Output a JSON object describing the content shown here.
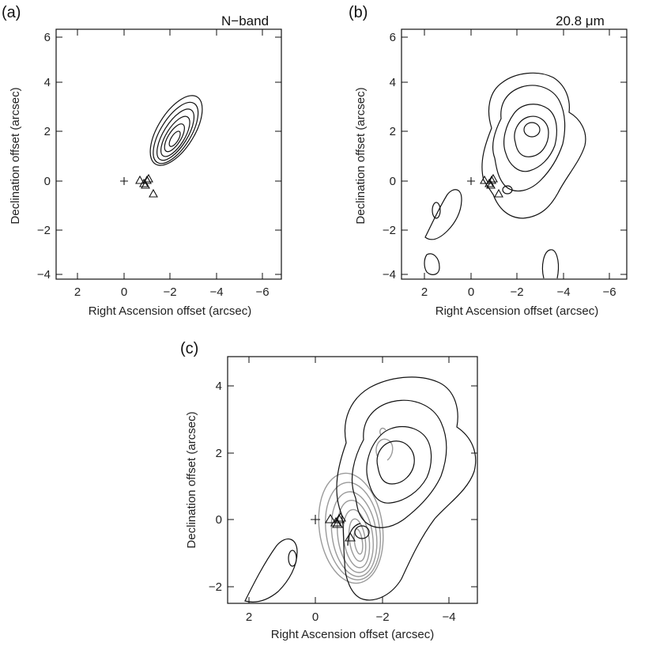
{
  "panels": [
    {
      "id": "a",
      "letter": "(a)",
      "band": "N−band",
      "xlabel": "Right Ascension offset (arcsec)",
      "ylabel": "Declination offset (arcsec)",
      "xticks": [
        "2",
        "0",
        "−2",
        "−4",
        "−6"
      ],
      "yticks": [
        "6",
        "4",
        "2",
        "0",
        "−2",
        "−4"
      ]
    },
    {
      "id": "b",
      "letter": "(b)",
      "band": "20.8 μm",
      "xlabel": "Right Ascension offset (arcsec)",
      "ylabel": "Declination offset (arcsec)",
      "xticks": [
        "2",
        "0",
        "−2",
        "−4",
        "−6"
      ],
      "yticks": [
        "6",
        "4",
        "2",
        "0",
        "−2",
        "−4"
      ]
    },
    {
      "id": "c",
      "letter": "(c)",
      "band": "",
      "xlabel": "Right Ascension offset (arcsec)",
      "ylabel": "Declination offset (arcsec)",
      "xticks": [
        "2",
        "0",
        "−2",
        "−4"
      ],
      "yticks": [
        "4",
        "2",
        "0",
        "−2"
      ]
    }
  ],
  "markers": {
    "cross": "+",
    "triangle_positions_arcsec": [
      [
        0.45,
        0.0
      ],
      [
        0.7,
        0.0
      ],
      [
        0.85,
        0.05
      ],
      [
        0.9,
        0.1
      ],
      [
        0.75,
        -0.15
      ],
      [
        1.1,
        -0.5
      ]
    ]
  },
  "colors": {
    "contour": "#111111",
    "overlay_contour": "#9a9a9a"
  }
}
